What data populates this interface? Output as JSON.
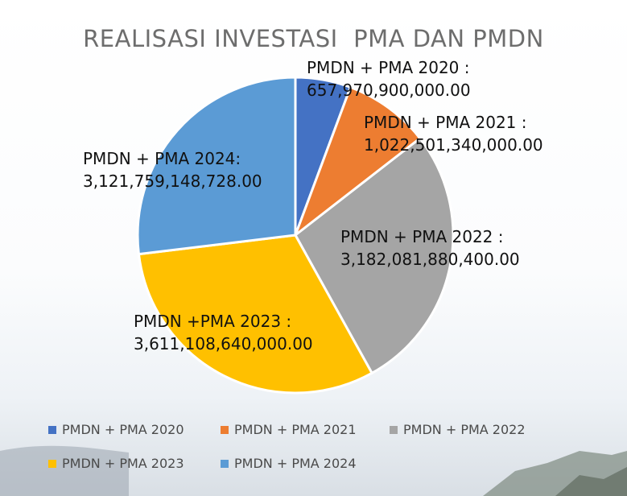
{
  "title": "REALISASI INVESTASI  PMA DAN PMDN",
  "chart_data": {
    "type": "pie",
    "title": "REALISASI INVESTASI  PMA DAN PMDN",
    "legend_placement": "bottom",
    "categories": [
      "PMDN + PMA 2020",
      "PMDN + PMA 2021",
      "PMDN + PMA 2022",
      "PMDN + PMA 2023",
      "PMDN + PMA 2024"
    ],
    "values": [
      657970900000.0,
      1022501340000.0,
      3182081880400.0,
      3611108640000.0,
      3121759148728.0
    ],
    "colors": [
      "#4472c4",
      "#ed7d31",
      "#a5a5a5",
      "#ffc000",
      "#5b9bd5"
    ],
    "labels": [
      {
        "name": "PMDN + PMA 2020 :",
        "value": "657,970,900,000.00"
      },
      {
        "name": "PMDN + PMA 2021 :",
        "value": "1,022,501,340,000.00"
      },
      {
        "name": "PMDN + PMA 2022 :",
        "value": "3,182,081,880,400.00"
      },
      {
        "name": "PMDN +PMA 2023 :",
        "value": "3,611,108,640,000.00"
      },
      {
        "name": "PMDN + PMA 2024:",
        "value": "3,121,759,148,728.00"
      }
    ],
    "legend": [
      "PMDN + PMA 2020",
      "PMDN + PMA 2021",
      "PMDN + PMA 2022",
      "PMDN + PMA 2023",
      "PMDN + PMA 2024"
    ]
  }
}
